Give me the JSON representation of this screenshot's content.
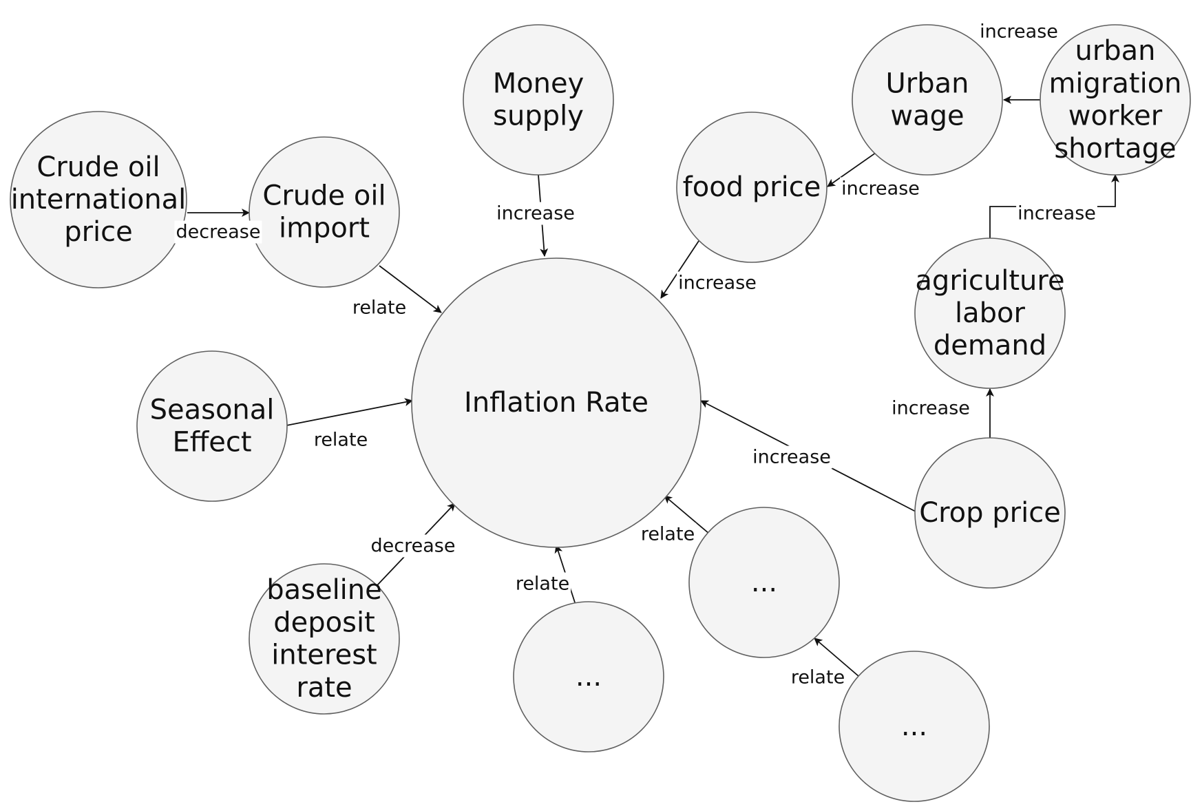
{
  "nodes": [
    {
      "id": "inflation",
      "label": "Inflation Rate"
    },
    {
      "id": "crude_intl",
      "label": "Crude oil\ninternational\nprice"
    },
    {
      "id": "crude_import",
      "label": "Crude oil\nimport"
    },
    {
      "id": "money",
      "label": "Money\nsupply"
    },
    {
      "id": "food",
      "label": "food price"
    },
    {
      "id": "urban_wage",
      "label": "Urban\nwage"
    },
    {
      "id": "urban_mig",
      "label": "urban\nmigration\nworker\nshortage"
    },
    {
      "id": "agri",
      "label": "agriculture\nlabor\ndemand"
    },
    {
      "id": "crop",
      "label": "Crop price"
    },
    {
      "id": "seasonal",
      "label": "Seasonal\nEffect"
    },
    {
      "id": "deposit",
      "label": "baseline\ndeposit\ninterest\nrate"
    },
    {
      "id": "dots1",
      "label": "..."
    },
    {
      "id": "dots2",
      "label": "..."
    },
    {
      "id": "dots3",
      "label": "..."
    }
  ],
  "edges": [
    {
      "from": "crude_intl",
      "to": "crude_import",
      "label": "decrease"
    },
    {
      "from": "crude_import",
      "to": "inflation",
      "label": "relate"
    },
    {
      "from": "money",
      "to": "inflation",
      "label": "increase"
    },
    {
      "from": "food",
      "to": "inflation",
      "label": "increase"
    },
    {
      "from": "urban_wage",
      "to": "food",
      "label": "increase"
    },
    {
      "from": "urban_mig",
      "to": "urban_wage",
      "label": "increase"
    },
    {
      "from": "agri",
      "to": "urban_mig",
      "label": "increase"
    },
    {
      "from": "crop",
      "to": "agri",
      "label": "increase"
    },
    {
      "from": "crop",
      "to": "inflation",
      "label": "increase"
    },
    {
      "from": "seasonal",
      "to": "inflation",
      "label": "relate"
    },
    {
      "from": "deposit",
      "to": "inflation",
      "label": "decrease"
    },
    {
      "from": "dots1",
      "to": "inflation",
      "label": "relate"
    },
    {
      "from": "dots2",
      "to": "inflation",
      "label": "relate"
    },
    {
      "from": "dots3",
      "to": "dots2",
      "label": "relate"
    }
  ]
}
